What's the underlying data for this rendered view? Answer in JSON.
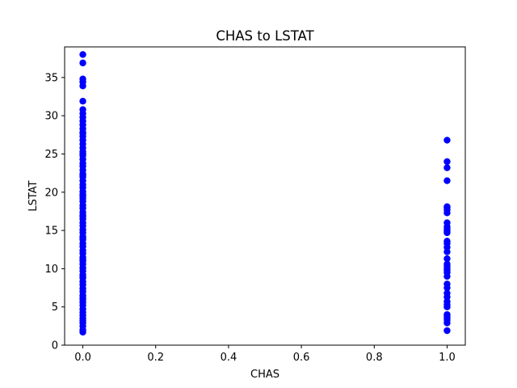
{
  "chart_data": {
    "type": "scatter",
    "title": "CHAS to LSTAT",
    "xlabel": "CHAS",
    "ylabel": "LSTAT",
    "xlim": [
      -0.05,
      1.05
    ],
    "ylim": [
      0,
      39
    ],
    "xticks": [
      0.0,
      0.2,
      0.4,
      0.6,
      0.8,
      1.0
    ],
    "xtick_labels": [
      "0.0",
      "0.2",
      "0.4",
      "0.6",
      "0.8",
      "1.0"
    ],
    "yticks": [
      0,
      5,
      10,
      15,
      20,
      25,
      30,
      35
    ],
    "ytick_labels": [
      "0",
      "5",
      "10",
      "15",
      "20",
      "25",
      "30",
      "35"
    ],
    "grid": false,
    "legend": false,
    "marker_color": "#0000ff",
    "series": [
      {
        "x": [
          0,
          0,
          0,
          0,
          0,
          0,
          0,
          0,
          0,
          0,
          0,
          0,
          0,
          0,
          0,
          0,
          0,
          0,
          0,
          0,
          0,
          0,
          0,
          0,
          0,
          0,
          0,
          0,
          0,
          0,
          0,
          0,
          0,
          0,
          0,
          0,
          0,
          0,
          0,
          0,
          0,
          0,
          0,
          0,
          0,
          0,
          0,
          0,
          0,
          0,
          0,
          0,
          0,
          0,
          0,
          0,
          0,
          0,
          0,
          0,
          0,
          0,
          0,
          0,
          0,
          0,
          0,
          0,
          0,
          0,
          0,
          0,
          0,
          0,
          0,
          0,
          0,
          0,
          0,
          0,
          1,
          1,
          1,
          1,
          1,
          1,
          1,
          1,
          1,
          1,
          1,
          1,
          1,
          1,
          1,
          1,
          1,
          1,
          1,
          1,
          1,
          1,
          1,
          1,
          1,
          1,
          1,
          1,
          1,
          1,
          1,
          1,
          1,
          1,
          1,
          1,
          1
        ],
        "y": [
          1.7,
          2.0,
          2.5,
          2.9,
          3.2,
          3.5,
          3.9,
          4.3,
          4.7,
          5.2,
          5.6,
          6.0,
          6.5,
          7.0,
          7.4,
          7.9,
          8.3,
          8.8,
          9.2,
          9.7,
          10.1,
          10.6,
          11.0,
          11.5,
          12.0,
          12.4,
          12.9,
          13.3,
          13.8,
          14.2,
          14.7,
          15.1,
          15.6,
          16.0,
          16.5,
          17.0,
          17.4,
          17.9,
          18.3,
          18.8,
          19.2,
          19.7,
          20.1,
          20.6,
          21.0,
          21.5,
          22.0,
          22.4,
          22.9,
          23.4,
          23.8,
          24.3,
          24.8,
          25.3,
          25.8,
          26.3,
          26.8,
          27.3,
          27.8,
          28.3,
          28.8,
          29.3,
          29.8,
          30.3,
          30.8,
          31.9,
          33.9,
          34.4,
          34.8,
          36.9,
          38.0,
          6.2,
          8.9,
          11.2,
          14.0,
          16.8,
          19.5,
          22.2,
          25.0,
          27.7,
          1.9,
          2.9,
          3.3,
          3.6,
          4.0,
          5.3,
          5.7,
          6.3,
          6.8,
          8.0,
          9.0,
          9.5,
          10.0,
          10.6,
          11.3,
          12.2,
          13.3,
          13.6,
          14.7,
          14.9,
          15.2,
          16.0,
          17.3,
          17.7,
          18.1,
          21.5,
          23.2,
          24.0,
          26.8,
          12.8,
          10.3,
          7.5,
          5.0,
          3.9,
          18.0,
          15.5,
          9.8
        ]
      }
    ]
  }
}
